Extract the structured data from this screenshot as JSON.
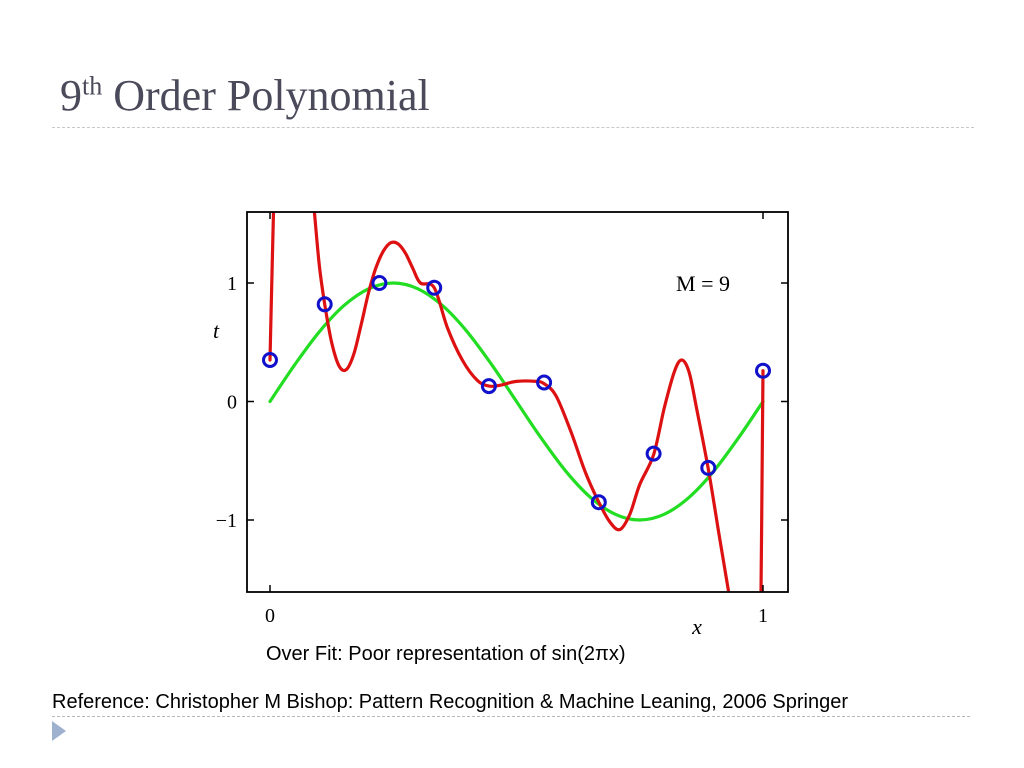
{
  "slide": {
    "title_base": "9",
    "title_sup": "th",
    "title_rest": " Order Polynomial",
    "caption": "Over Fit: Poor representation of sin(2πx)",
    "reference": "Reference: Christopher M Bishop: Pattern Recognition & Machine Leaning, 2006 Springer",
    "bullet_icon": "triangle-bullet-icon"
  },
  "chart_data": {
    "type": "line",
    "xlabel": "x",
    "ylabel": "t",
    "annotation": "M = 9",
    "xlim": [
      0,
      1
    ],
    "ylim": [
      -1.6,
      1.6
    ],
    "xticks": [
      0,
      1
    ],
    "yticks": [
      -1,
      0,
      1
    ],
    "xtick_labels": [
      "0",
      "1"
    ],
    "ytick_labels": [
      "−1",
      "0",
      "1"
    ],
    "grid": false,
    "series": [
      {
        "kind": "curve",
        "color": "#22dd22",
        "points": [
          [
            0,
            0
          ],
          [
            0.05,
            0.309
          ],
          [
            0.1,
            0.588
          ],
          [
            0.15,
            0.809
          ],
          [
            0.2,
            0.951
          ],
          [
            0.25,
            1
          ],
          [
            0.3,
            0.951
          ],
          [
            0.35,
            0.809
          ],
          [
            0.4,
            0.588
          ],
          [
            0.45,
            0.309
          ],
          [
            0.5,
            0
          ],
          [
            0.55,
            -0.309
          ],
          [
            0.6,
            -0.588
          ],
          [
            0.65,
            -0.809
          ],
          [
            0.7,
            -0.951
          ],
          [
            0.75,
            -1
          ],
          [
            0.8,
            -0.951
          ],
          [
            0.85,
            -0.809
          ],
          [
            0.9,
            -0.588
          ],
          [
            0.95,
            -0.309
          ],
          [
            1,
            0
          ]
        ]
      },
      {
        "kind": "curve",
        "color": "#dd1111",
        "points": [
          [
            0,
            0.35
          ],
          [
            0.003,
            0.9
          ],
          [
            0.007,
            1.6
          ]
        ]
      },
      {
        "kind": "curve",
        "color": "#dd1111",
        "points": [
          [
            0.09,
            1.6
          ],
          [
            0.1,
            1.15
          ],
          [
            0.111,
            0.82
          ],
          [
            0.125,
            0.5
          ],
          [
            0.14,
            0.3
          ],
          [
            0.155,
            0.27
          ],
          [
            0.17,
            0.4
          ],
          [
            0.185,
            0.65
          ],
          [
            0.2,
            0.92
          ],
          [
            0.215,
            1.13
          ],
          [
            0.23,
            1.27
          ],
          [
            0.245,
            1.34
          ],
          [
            0.26,
            1.33
          ],
          [
            0.275,
            1.25
          ],
          [
            0.29,
            1.12
          ],
          [
            0.305,
            1.0
          ],
          [
            0.333,
            0.96
          ],
          [
            0.36,
            0.62
          ],
          [
            0.39,
            0.35
          ],
          [
            0.42,
            0.18
          ],
          [
            0.444,
            0.13
          ],
          [
            0.47,
            0.14
          ],
          [
            0.5,
            0.17
          ],
          [
            0.54,
            0.17
          ],
          [
            0.556,
            0.15
          ],
          [
            0.58,
            0.05
          ],
          [
            0.61,
            -0.25
          ],
          [
            0.64,
            -0.6
          ],
          [
            0.667,
            -0.85
          ],
          [
            0.69,
            -1.02
          ],
          [
            0.71,
            -1.08
          ],
          [
            0.73,
            -0.95
          ],
          [
            0.75,
            -0.7
          ],
          [
            0.778,
            -0.45
          ],
          [
            0.8,
            -0.05
          ],
          [
            0.82,
            0.25
          ],
          [
            0.835,
            0.35
          ],
          [
            0.85,
            0.25
          ],
          [
            0.865,
            -0.05
          ],
          [
            0.889,
            -0.57
          ],
          [
            0.91,
            -1.1
          ],
          [
            0.93,
            -1.6
          ]
        ]
      },
      {
        "kind": "curve",
        "color": "#dd1111",
        "points": [
          [
            0.996,
            -1.6
          ],
          [
            0.998,
            -0.7
          ],
          [
            1,
            0.26
          ]
        ]
      },
      {
        "kind": "points",
        "color": "#1111cc",
        "points": [
          [
            0,
            0.35
          ],
          [
            0.111,
            0.82
          ],
          [
            0.222,
            1.0
          ],
          [
            0.333,
            0.96
          ],
          [
            0.444,
            0.13
          ],
          [
            0.556,
            0.16
          ],
          [
            0.667,
            -0.85
          ],
          [
            0.778,
            -0.44
          ],
          [
            0.889,
            -0.56
          ],
          [
            1,
            0.26
          ]
        ]
      }
    ]
  }
}
